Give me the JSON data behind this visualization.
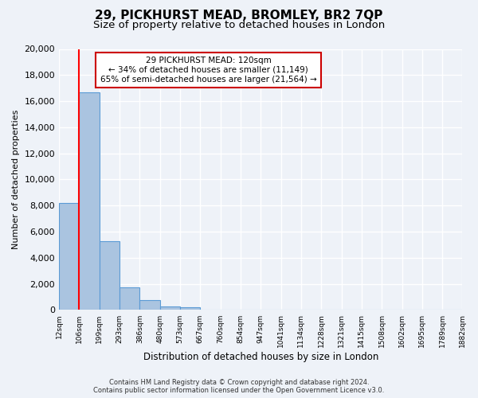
{
  "title": "29, PICKHURST MEAD, BROMLEY, BR2 7QP",
  "subtitle": "Size of property relative to detached houses in London",
  "xlabel": "Distribution of detached houses by size in London",
  "ylabel": "Number of detached properties",
  "bin_labels": [
    "12sqm",
    "106sqm",
    "199sqm",
    "293sqm",
    "386sqm",
    "480sqm",
    "573sqm",
    "667sqm",
    "760sqm",
    "854sqm",
    "947sqm",
    "1041sqm",
    "1134sqm",
    "1228sqm",
    "1321sqm",
    "1415sqm",
    "1508sqm",
    "1602sqm",
    "1695sqm",
    "1789sqm",
    "1882sqm"
  ],
  "bar_heights": [
    8200,
    16700,
    5300,
    1750,
    750,
    250,
    200,
    0,
    0,
    0,
    0,
    0,
    0,
    0,
    0,
    0,
    0,
    0,
    0,
    0
  ],
  "bar_color": "#aac4e0",
  "bar_edge_color": "#5b9bd5",
  "red_line_x": 1,
  "ylim": [
    0,
    20000
  ],
  "yticks": [
    0,
    2000,
    4000,
    6000,
    8000,
    10000,
    12000,
    14000,
    16000,
    18000,
    20000
  ],
  "annotation_title": "29 PICKHURST MEAD: 120sqm",
  "annotation_line1": "← 34% of detached houses are smaller (11,149)",
  "annotation_line2": "65% of semi-detached houses are larger (21,564) →",
  "footer_line1": "Contains HM Land Registry data © Crown copyright and database right 2024.",
  "footer_line2": "Contains public sector information licensed under the Open Government Licence v3.0.",
  "background_color": "#eef2f8",
  "grid_color": "#ffffff",
  "title_fontsize": 11,
  "subtitle_fontsize": 9.5
}
